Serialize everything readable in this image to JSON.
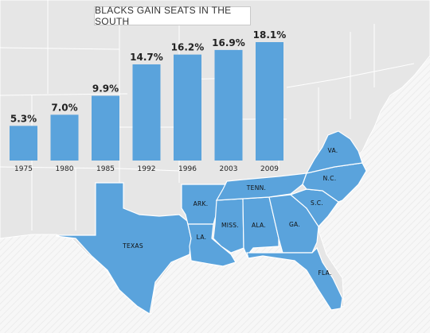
{
  "title": "BLACKS GAIN SEATS IN THE SOUTH",
  "colors": {
    "bar": "#5aa3dc",
    "map_land": "#e6e6e6",
    "map_line": "#ffffff",
    "highlight": "#5aa3dc"
  },
  "chart_data": {
    "type": "bar",
    "title": "BLACKS GAIN SEATS IN THE SOUTH",
    "categories": [
      "1975",
      "1980",
      "1985",
      "1992",
      "1996",
      "2003",
      "2009"
    ],
    "values": [
      5.3,
      7.0,
      9.9,
      14.7,
      16.2,
      16.9,
      18.1
    ],
    "value_labels": [
      "5.3%",
      "7.0%",
      "9.9%",
      "14.7%",
      "16.2%",
      "16.9%",
      "18.1%"
    ],
    "ylim": [
      0,
      20
    ],
    "grid": false
  },
  "map": {
    "highlighted_states": [
      {
        "id": "texas",
        "label": "TEXAS"
      },
      {
        "id": "arkansas",
        "label": "ARK."
      },
      {
        "id": "louisiana",
        "label": "LA."
      },
      {
        "id": "mississippi",
        "label": "MISS."
      },
      {
        "id": "alabama",
        "label": "ALA."
      },
      {
        "id": "georgia",
        "label": "GA."
      },
      {
        "id": "florida",
        "label": "FLA."
      },
      {
        "id": "tennessee",
        "label": "TENN."
      },
      {
        "id": "south-carolina",
        "label": "S.C."
      },
      {
        "id": "north-carolina",
        "label": "N.C."
      },
      {
        "id": "virginia",
        "label": "VA."
      }
    ]
  }
}
